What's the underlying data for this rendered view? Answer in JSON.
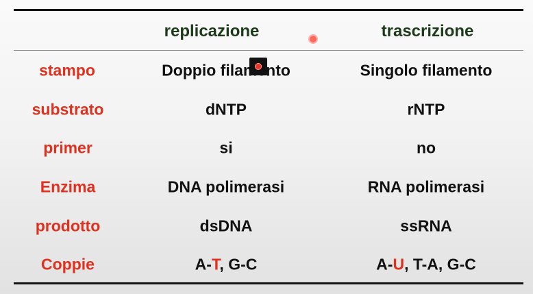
{
  "header": {
    "col1": "replicazione",
    "col2": "trascrizione"
  },
  "rows": [
    {
      "label": "stampo",
      "replicazione": "Doppio filamento",
      "trascrizione": "Singolo filamento"
    },
    {
      "label": "substrato",
      "replicazione": "dNTP",
      "trascrizione": "rNTP"
    },
    {
      "label": "primer",
      "replicazione": "si",
      "trascrizione": "no"
    },
    {
      "label": "Enzima",
      "replicazione": "DNA polimerasi",
      "trascrizione": "RNA polimerasi"
    },
    {
      "label": "prodotto",
      "replicazione": "dsDNA",
      "trascrizione": "ssRNA"
    }
  ],
  "pairs": {
    "label": "Coppie",
    "replicazione": {
      "base1": "A-",
      "partner": "T",
      "rest": ", G-C"
    },
    "trascrizione": {
      "base1": "A-",
      "partner": "U",
      "rest": ", T-A, G-C"
    }
  },
  "colors": {
    "label_red": "#e0301e",
    "header_green": "#1d3a1b",
    "text_black": "#111111"
  }
}
